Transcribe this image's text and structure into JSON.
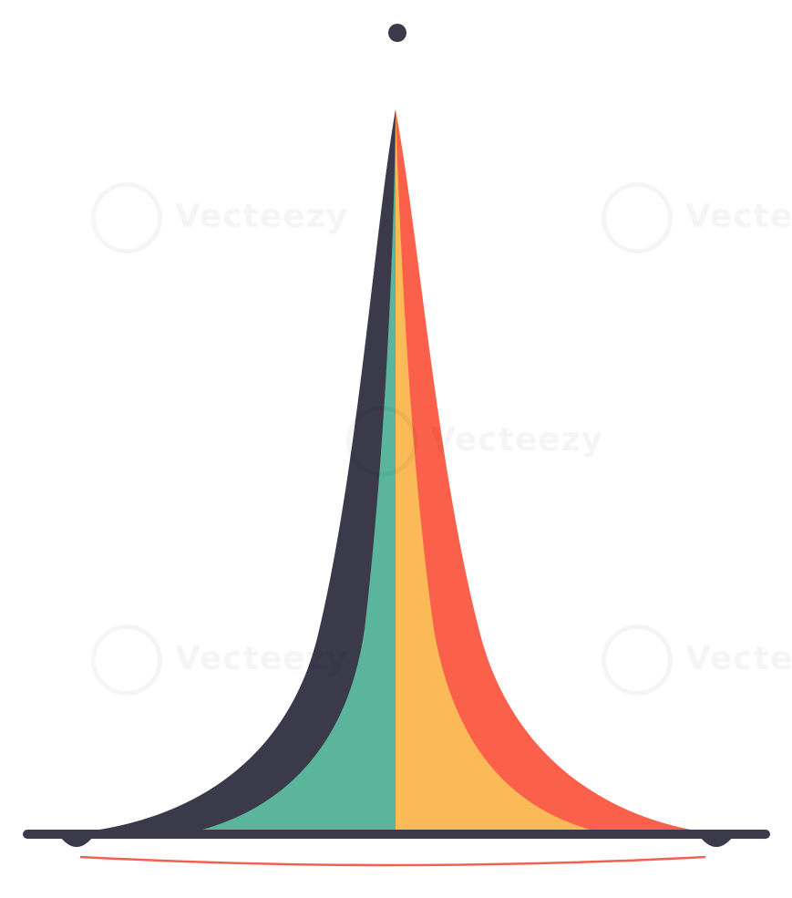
{
  "illustration": {
    "subject": "bell-curve",
    "colors": {
      "background": "#ffffff",
      "dark_band": "#3b3a4a",
      "green_band": "#5ab59c",
      "yellow_band": "#fbb957",
      "red_band": "#fa604a",
      "baseline": "#3b3a4a",
      "underline": "#f26150",
      "apex_dot": "#3b3a4a"
    }
  },
  "watermark": {
    "text": "Vecteezy"
  }
}
